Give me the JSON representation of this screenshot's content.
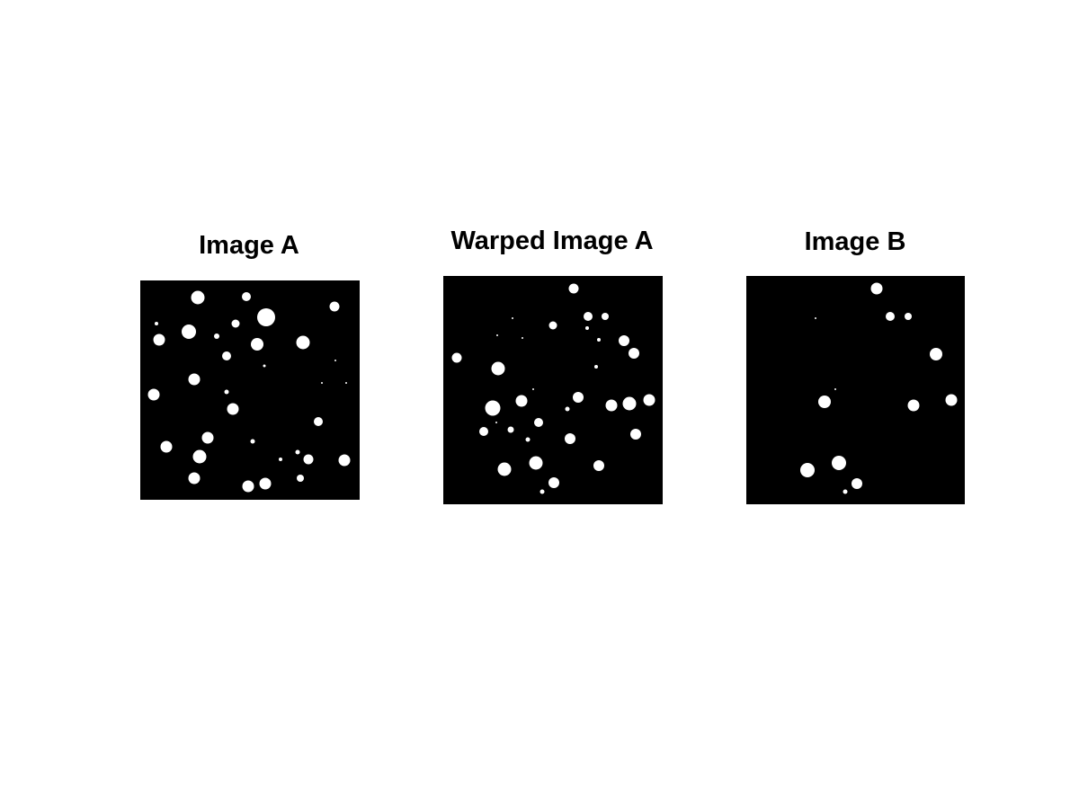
{
  "figure": {
    "background_color": "#ffffff",
    "image_background_color": "#000000",
    "blob_color": "#ffffff"
  },
  "panels": [
    {
      "id": "image-a",
      "title": "Image A"
    },
    {
      "id": "warped-image-a",
      "title": "Warped Image A"
    },
    {
      "id": "image-b",
      "title": "Image B"
    }
  ]
}
